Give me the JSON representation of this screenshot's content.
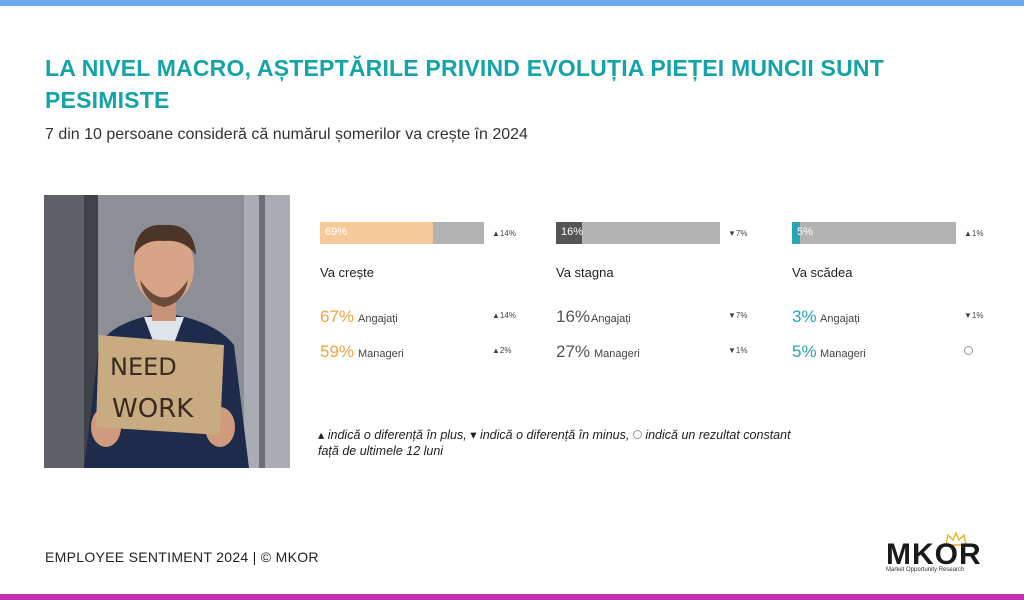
{
  "header": {
    "title": "LA NIVEL MACRO, AȘTEPTĂRILE PRIVIND EVOLUȚIA PIEȚEI MUNCII SUNT PESIMISTE",
    "subtitle": "7 din 10 persoane consideră că numărul șomerilor va crește în 2024"
  },
  "photo": {
    "sign_line1": "NEED",
    "sign_line2": "WORK"
  },
  "colors": {
    "title": "#14a3a8",
    "top_bar": "#6ea8f0",
    "bottom_bar": "#c42fae",
    "orange": "#f5a041",
    "orange_fill": "#f7c99a",
    "dark_gray": "#555555",
    "teal": "#2aa3b5",
    "track": "#b3b3b3"
  },
  "chart_data": {
    "type": "bar",
    "categories": [
      "Va crește",
      "Va stagna",
      "Va scădea"
    ],
    "values": [
      69,
      16,
      5
    ],
    "bar_labels": [
      "69%",
      "16%",
      "5%"
    ],
    "ylim": [
      0,
      100
    ],
    "deltas": [
      {
        "direction": "up",
        "text": "14%"
      },
      {
        "direction": "down",
        "text": "7%"
      },
      {
        "direction": "up",
        "text": "1%"
      }
    ],
    "series": [
      {
        "name": "Angajați",
        "values": [
          67,
          16,
          3
        ],
        "labels": [
          "67%",
          "16%",
          "3%"
        ],
        "deltas": [
          {
            "direction": "up",
            "text": "14%"
          },
          {
            "direction": "down",
            "text": "7%"
          },
          {
            "direction": "down",
            "text": "1%"
          }
        ]
      },
      {
        "name": "Manageri",
        "values": [
          59,
          27,
          5
        ],
        "labels": [
          "59%",
          "27%",
          "5%"
        ],
        "deltas": [
          {
            "direction": "up",
            "text": "2%"
          },
          {
            "direction": "down",
            "text": "1%"
          },
          {
            "direction": "constant",
            "text": ""
          }
        ]
      }
    ]
  },
  "columns": [
    {
      "label": "Va crește",
      "bar_label": "69%",
      "bar_delta": "▲14%",
      "emp_pct": "67%",
      "emp_label": "Angajați",
      "emp_delta": "▲14%",
      "mgr_pct": "59%",
      "mgr_label": "Manageri",
      "mgr_delta": "▲2%"
    },
    {
      "label": "Va stagna",
      "bar_label": "16%",
      "bar_delta": "▼7%",
      "emp_pct": "16%",
      "emp_label": "Angajați",
      "emp_delta": "▼7%",
      "mgr_pct": "27%",
      "mgr_label": "Manageri",
      "mgr_delta": "▼1%"
    },
    {
      "label": "Va scădea",
      "bar_label": "5%",
      "bar_delta": "▲1%",
      "emp_pct": "3%",
      "emp_label": "Angajați",
      "emp_delta": "▼1%",
      "mgr_pct": "5%",
      "mgr_label": "Manageri",
      "mgr_delta": ""
    }
  ],
  "legend_note": {
    "part1": "▴ indică o diferență în plus, ▾ indică o diferență în minus,",
    "part2": "indică un rezultat constant",
    "line2": "față de ultimele 12 luni"
  },
  "footer": {
    "text": "EMPLOYEE SENTIMENT 2024 | © MKOR"
  },
  "logo": {
    "word": "MKOR",
    "tagline": "Market Opportunity Research"
  }
}
